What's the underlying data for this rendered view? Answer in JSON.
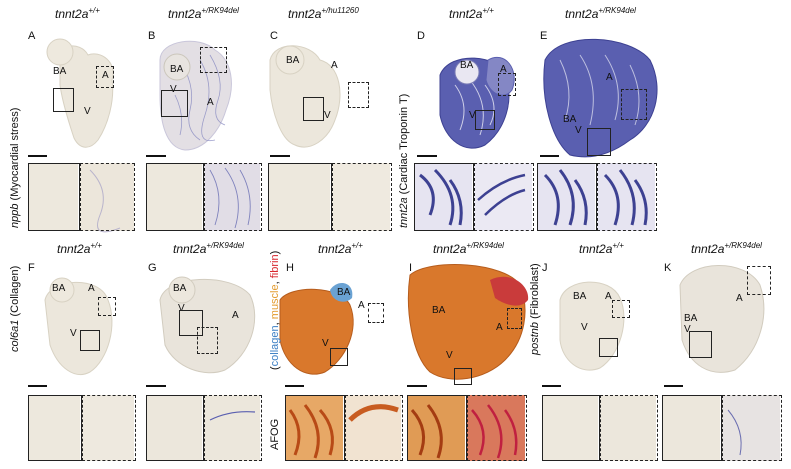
{
  "genotypes": {
    "wt": {
      "base": "tnnt2a",
      "sup": "+/+"
    },
    "rk": {
      "base": "tnnt2a",
      "sup": "+/RK94del"
    },
    "hu": {
      "base": "tnnt2a",
      "sup": "+/hu11260"
    }
  },
  "panels": [
    "A",
    "B",
    "C",
    "D",
    "E",
    "F",
    "G",
    "H",
    "I",
    "J",
    "K"
  ],
  "region_labels": {
    "ba": "BA",
    "a": "A",
    "v": "V"
  },
  "row_labels": {
    "nppb_gene": "nppb",
    "nppb_desc": "(Myocardial stress)",
    "tnnt2a_gene": "tnnt2a",
    "tnnt2a_desc": "(Cardiac Troponin T)",
    "col6a1_gene": "col6a1",
    "col6a1_desc": "(Collagen)",
    "postnb_gene": "postnb",
    "postnb_desc": "(Fibroblast)",
    "afog": "AFOG"
  },
  "afog_stain": {
    "open": "(",
    "collagen": "collagen",
    "muscle": "muscle",
    "fibrin": "fibrin",
    "close": ")",
    "sep": ", "
  },
  "colors": {
    "collagen": "#3c7fc4",
    "muscle": "#e39b2d",
    "fibrin": "#d8262d",
    "ish_blue": "#4a4fa6",
    "tissue": "#e9e3d6",
    "afog_orange": "#d9782c"
  }
}
